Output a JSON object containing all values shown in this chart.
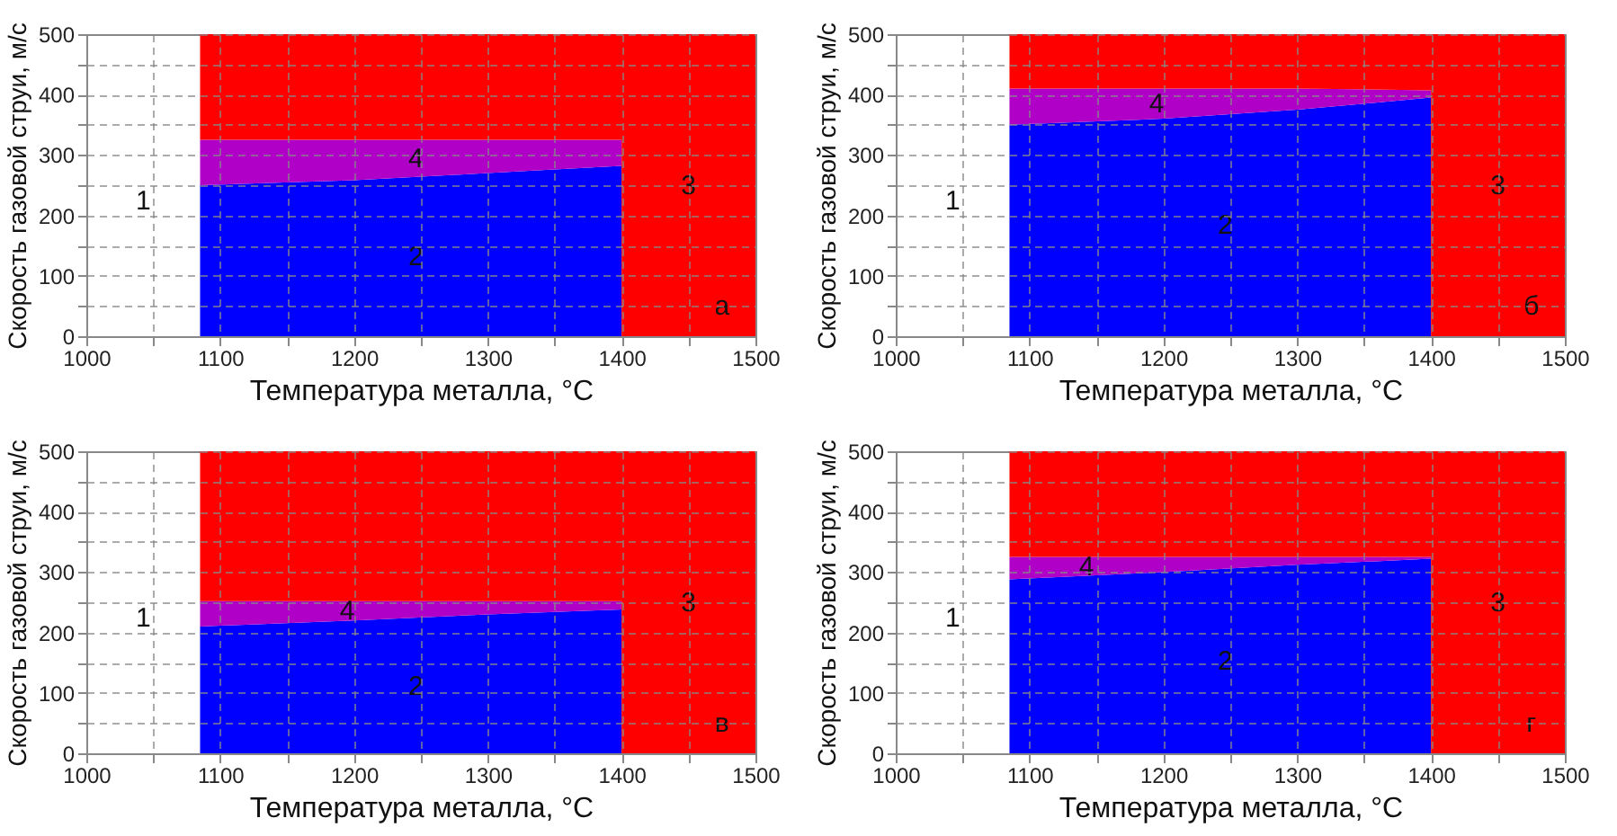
{
  "chart_data": [
    {
      "type": "area",
      "stacked": true,
      "xlabel": "Температура металла, °C",
      "ylabel": "Скорость газовой струи, м/с",
      "xlim": [
        1000,
        1500
      ],
      "ylim": [
        0,
        500
      ],
      "xticks": [
        1000,
        {
          "value": 1050,
          "label": null
        },
        1100,
        {
          "value": 1150,
          "label": null
        },
        1200,
        {
          "value": 1250,
          "label": null
        },
        1300,
        {
          "value": 1350,
          "label": null
        },
        1400,
        {
          "value": 1450,
          "label": null
        },
        1500
      ],
      "yticks": [
        0,
        {
          "value": 50,
          "label": null
        },
        100,
        {
          "value": 150,
          "label": null
        },
        200,
        {
          "value": 250,
          "label": null
        },
        300,
        {
          "value": 350,
          "label": null
        },
        400,
        {
          "value": 450,
          "label": null
        },
        500
      ],
      "grid": true,
      "x": [
        1085,
        1200,
        1300,
        1400,
        1400,
        1500
      ],
      "series": [
        {
          "name": "2",
          "color": "#0000ff",
          "values": [
            250,
            258,
            270,
            282,
            0,
            0
          ]
        },
        {
          "name": "4",
          "color": "#b000c8",
          "values": [
            75,
            67,
            55,
            43,
            0,
            0
          ]
        },
        {
          "name": "3",
          "color": "#ff0000",
          "values": [
            175,
            175,
            175,
            175,
            500,
            500
          ]
        }
      ],
      "annotations": [
        "1",
        "а"
      ]
    },
    {
      "type": "area",
      "stacked": true,
      "xlabel": "Температура металла, °C",
      "ylabel": "Скорость газовой струи, м/с",
      "xlim": [
        1000,
        1500
      ],
      "ylim": [
        0,
        500
      ],
      "xticks": [
        1000,
        {
          "value": 1050,
          "label": null
        },
        1100,
        {
          "value": 1150,
          "label": null
        },
        1200,
        {
          "value": 1250,
          "label": null
        },
        1300,
        {
          "value": 1350,
          "label": null
        },
        1400,
        {
          "value": 1450,
          "label": null
        },
        1500
      ],
      "yticks": [
        0,
        {
          "value": 50,
          "label": null
        },
        100,
        {
          "value": 150,
          "label": null
        },
        200,
        {
          "value": 250,
          "label": null
        },
        300,
        {
          "value": 350,
          "label": null
        },
        400,
        {
          "value": 450,
          "label": null
        },
        500
      ],
      "grid": true,
      "x": [
        1085,
        1200,
        1300,
        1400,
        1400,
        1500
      ],
      "series": [
        {
          "name": "2",
          "color": "#0000ff",
          "values": [
            350,
            360,
            375,
            395,
            0,
            0
          ]
        },
        {
          "name": "4",
          "color": "#b000c8",
          "values": [
            60,
            50,
            35,
            12,
            0,
            0
          ]
        },
        {
          "name": "3",
          "color": "#ff0000",
          "values": [
            90,
            90,
            90,
            93,
            500,
            500
          ]
        }
      ],
      "annotations": [
        "1",
        "б"
      ]
    },
    {
      "type": "area",
      "stacked": true,
      "xlabel": "Температура металла, °C",
      "ylabel": "Скорость газовой струи, м/с",
      "xlim": [
        1000,
        1500
      ],
      "ylim": [
        0,
        500
      ],
      "xticks": [
        1000,
        {
          "value": 1050,
          "label": null
        },
        1100,
        {
          "value": 1150,
          "label": null
        },
        1200,
        {
          "value": 1250,
          "label": null
        },
        1300,
        {
          "value": 1350,
          "label": null
        },
        1400,
        {
          "value": 1450,
          "label": null
        },
        1500
      ],
      "yticks": [
        0,
        {
          "value": 50,
          "label": null
        },
        100,
        {
          "value": 150,
          "label": null
        },
        200,
        {
          "value": 250,
          "label": null
        },
        300,
        {
          "value": 350,
          "label": null
        },
        400,
        {
          "value": 450,
          "label": null
        },
        500
      ],
      "grid": true,
      "x": [
        1085,
        1200,
        1300,
        1400,
        1400,
        1500
      ],
      "series": [
        {
          "name": "2",
          "color": "#0000ff",
          "values": [
            210,
            220,
            230,
            238,
            0,
            0
          ]
        },
        {
          "name": "4",
          "color": "#b000c8",
          "values": [
            42,
            32,
            22,
            14,
            0,
            0
          ]
        },
        {
          "name": "3",
          "color": "#ff0000",
          "values": [
            248,
            248,
            248,
            248,
            500,
            500
          ]
        }
      ],
      "annotations": [
        "1",
        "в"
      ]
    },
    {
      "type": "area",
      "stacked": true,
      "xlabel": "Температура металла, °C",
      "ylabel": "Скорость газовой струи, м/с",
      "xlim": [
        1000,
        1500
      ],
      "ylim": [
        0,
        500
      ],
      "xticks": [
        1000,
        {
          "value": 1050,
          "label": null
        },
        1100,
        {
          "value": 1150,
          "label": null
        },
        1200,
        {
          "value": 1250,
          "label": null
        },
        1300,
        {
          "value": 1350,
          "label": null
        },
        1400,
        {
          "value": 1450,
          "label": null
        },
        1500
      ],
      "yticks": [
        0,
        {
          "value": 50,
          "label": null
        },
        100,
        {
          "value": 150,
          "label": null
        },
        200,
        {
          "value": 250,
          "label": null
        },
        300,
        {
          "value": 350,
          "label": null
        },
        400,
        {
          "value": 450,
          "label": null
        },
        500
      ],
      "grid": true,
      "x": [
        1085,
        1200,
        1300,
        1400,
        1400,
        1500
      ],
      "series": [
        {
          "name": "2",
          "color": "#0000ff",
          "values": [
            288,
            300,
            312,
            322,
            0,
            0
          ]
        },
        {
          "name": "4",
          "color": "#b000c8",
          "values": [
            37,
            25,
            13,
            3,
            0,
            0
          ]
        },
        {
          "name": "3",
          "color": "#ff0000",
          "values": [
            175,
            175,
            175,
            175,
            500,
            500
          ]
        }
      ],
      "annotations": [
        "1",
        "г"
      ]
    }
  ]
}
